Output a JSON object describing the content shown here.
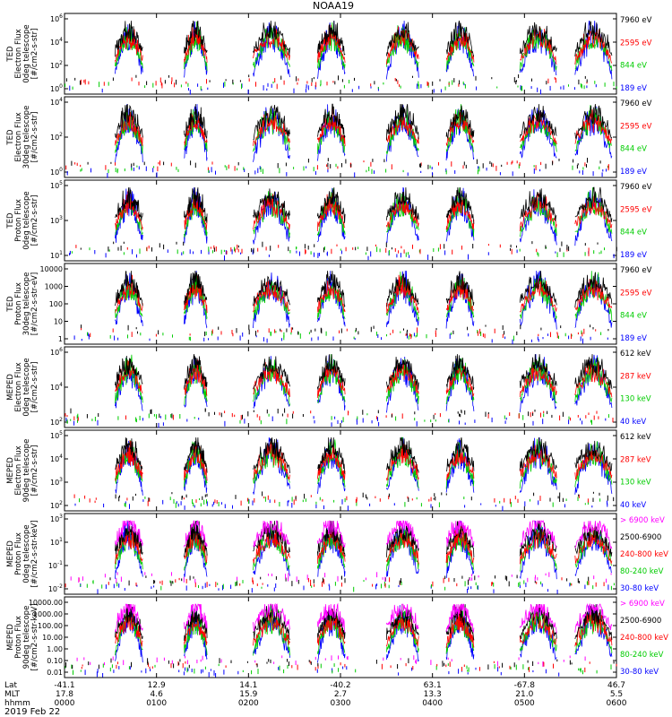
{
  "chart_data": {
    "type": "line",
    "title": "NOAA19",
    "date_label": "2019 Feb 22",
    "xaxis": {
      "row_labels": [
        "Lat",
        "MLT",
        "hhmm"
      ],
      "columns": [
        {
          "lat": "-41.1",
          "mlt": "17.8",
          "hhmm": "0000"
        },
        {
          "lat": "12.9",
          "mlt": "4.6",
          "hhmm": "0100"
        },
        {
          "lat": "14.1",
          "mlt": "15.9",
          "hhmm": "0200"
        },
        {
          "lat": "-40.2",
          "mlt": "2.7",
          "hhmm": "0300"
        },
        {
          "lat": "63.1",
          "mlt": "13.3",
          "hhmm": "0400"
        },
        {
          "lat": "-67.8",
          "mlt": "21.0",
          "hhmm": "0500"
        },
        {
          "lat": "46.7",
          "mlt": "5.5",
          "hhmm": "0600"
        }
      ]
    },
    "panels": [
      {
        "ylabel": [
          "TED",
          "Electron Flux",
          "0deg telescope",
          "[#/cm2-s-str]"
        ],
        "yticks": [
          "10^0",
          "10^2",
          "10^4",
          "10^6"
        ],
        "ylog_range": [
          0,
          6
        ],
        "legend": [
          {
            "name": "7960 eV",
            "color": "#000000"
          },
          {
            "name": "2595 eV",
            "color": "#ff0000"
          },
          {
            "name": "844 eV",
            "color": "#00cc00"
          },
          {
            "name": "189 eV",
            "color": "#0000ff"
          }
        ]
      },
      {
        "ylabel": [
          "TED",
          "Electron Flux",
          "30deg telescope",
          "[#/cm2-s-str]"
        ],
        "yticks": [
          "10^0",
          "10^2",
          "10^4"
        ],
        "ylog_range": [
          0,
          5
        ],
        "legend": [
          {
            "name": "7960 eV",
            "color": "#000000"
          },
          {
            "name": "2595 eV",
            "color": "#ff0000"
          },
          {
            "name": "844 eV",
            "color": "#00cc00"
          },
          {
            "name": "189 eV",
            "color": "#0000ff"
          }
        ]
      },
      {
        "ylabel": [
          "TED",
          "Proton Flux",
          "0deg telescope",
          "[#/cm2-s-str]"
        ],
        "yticks": [
          "10^1",
          "10^3",
          "10^5"
        ],
        "ylog_range": [
          0,
          6
        ],
        "legend": [
          {
            "name": "7960 eV",
            "color": "#000000"
          },
          {
            "name": "2595 eV",
            "color": "#ff0000"
          },
          {
            "name": "844 eV",
            "color": "#00cc00"
          },
          {
            "name": "189 eV",
            "color": "#0000ff"
          }
        ]
      },
      {
        "ylabel": [
          "TED",
          "Proton Flux",
          "30deg telescope",
          "[#/cm2-s-str-eV]"
        ],
        "yticks": [
          "1",
          "10",
          "100",
          "1000",
          "10000"
        ],
        "ylog_range": [
          0,
          4.3
        ],
        "legend": [
          {
            "name": "7960 eV",
            "color": "#000000"
          },
          {
            "name": "2595 eV",
            "color": "#ff0000"
          },
          {
            "name": "844 eV",
            "color": "#00cc00"
          },
          {
            "name": "189 eV",
            "color": "#0000ff"
          }
        ]
      },
      {
        "ylabel": [
          "MEPED",
          "Electron Flux",
          "0deg telescope",
          "[#/cm2-s-str]"
        ],
        "yticks": [
          "10^2",
          "10^4",
          "10^6"
        ],
        "ylog_range": [
          1,
          6
        ],
        "legend": [
          {
            "name": "612 keV",
            "color": "#000000"
          },
          {
            "name": "287 keV",
            "color": "#ff0000"
          },
          {
            "name": "130 keV",
            "color": "#00cc00"
          },
          {
            "name": "40 keV",
            "color": "#0000ff"
          }
        ]
      },
      {
        "ylabel": [
          "MEPED",
          "Electron Flux",
          "90deg telescope",
          "[#/cm2-s-str]"
        ],
        "yticks": [
          "10^2",
          "10^3",
          "10^4",
          "10^5"
        ],
        "ylog_range": [
          1.7,
          5.3
        ],
        "legend": [
          {
            "name": "612 keV",
            "color": "#000000"
          },
          {
            "name": "287 keV",
            "color": "#ff0000"
          },
          {
            "name": "130 keV",
            "color": "#00cc00"
          },
          {
            "name": "40 keV",
            "color": "#0000ff"
          }
        ]
      },
      {
        "ylabel": [
          "MEPED",
          "Proton Flux",
          "0deg telescope",
          "[#/cm2-s-str-keV]"
        ],
        "yticks": [
          "10^-2",
          "10^-1",
          "10^1",
          "10^3"
        ],
        "ylog_range": [
          -2.2,
          4
        ],
        "legend": [
          {
            "name": "> 6900 keV",
            "color": "#ff00ff"
          },
          {
            "name": "2500-6900",
            "color": "#000000"
          },
          {
            "name": "240-800 keV",
            "color": "#ff0000"
          },
          {
            "name": "80-240 keV",
            "color": "#00cc00"
          },
          {
            "name": "30-80 keV",
            "color": "#0000ff"
          }
        ]
      },
      {
        "ylabel": [
          "MEPED",
          "Proton Flux",
          "90deg telescope",
          "[#/cm2-s-str-keV]"
        ],
        "yticks": [
          "0.01",
          "0.10",
          "1.00",
          "10.00",
          "100.00",
          "1000.00",
          "10000.00"
        ],
        "ylog_range": [
          -2.2,
          4
        ],
        "legend": [
          {
            "name": "> 6900 keV",
            "color": "#ff00ff"
          },
          {
            "name": "2500-6900",
            "color": "#000000"
          },
          {
            "name": "240-800 keV",
            "color": "#ff0000"
          },
          {
            "name": "80-240 keV",
            "color": "#00cc00"
          },
          {
            "name": "30-80 keV",
            "color": "#0000ff"
          }
        ]
      }
    ],
    "passes_utc_hours": [
      [
        0.55,
        0.85
      ],
      [
        1.3,
        1.55
      ],
      [
        2.05,
        2.45
      ],
      [
        2.75,
        3.05
      ],
      [
        3.5,
        3.85
      ],
      [
        4.15,
        4.45
      ],
      [
        4.95,
        5.35
      ],
      [
        5.55,
        5.95
      ]
    ]
  }
}
